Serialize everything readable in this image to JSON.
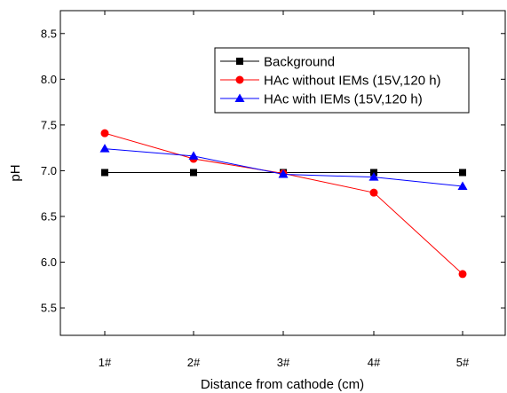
{
  "chart_data": {
    "type": "line",
    "title": "",
    "xlabel": "Distance from cathode (cm)",
    "ylabel": "pH",
    "categories": [
      "1#",
      "2#",
      "3#",
      "4#",
      "5#"
    ],
    "ylim": [
      5.2,
      8.75
    ],
    "yticks": [
      "5.5",
      "6.0",
      "6.5",
      "7.0",
      "7.5",
      "8.0",
      "8.5"
    ],
    "grid": false,
    "legend_position": "top-right",
    "series": [
      {
        "name": "Background",
        "color": "#000000",
        "marker": "square",
        "values": [
          6.98,
          6.98,
          6.98,
          6.98,
          6.98
        ]
      },
      {
        "name": "HAc without IEMs (15V,120 h)",
        "color": "#ff0000",
        "marker": "circle",
        "values": [
          7.41,
          7.13,
          6.97,
          6.76,
          5.87
        ]
      },
      {
        "name": "HAc with IEMs (15V,120 h)",
        "color": "#0000ff",
        "marker": "triangle",
        "values": [
          7.24,
          7.16,
          6.96,
          6.93,
          6.83
        ]
      }
    ]
  }
}
